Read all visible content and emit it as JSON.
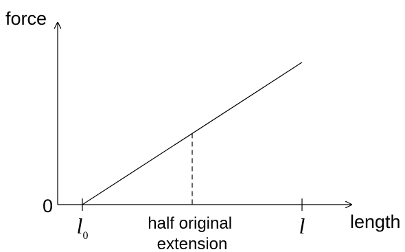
{
  "chart_data": {
    "type": "line",
    "title": "",
    "ylabel": "force",
    "xlabel": "length",
    "origin_label": "0",
    "x_range": [
      0,
      10
    ],
    "y_range": [
      0,
      10
    ],
    "x_ticks": [
      {
        "value": 1,
        "label": "l",
        "subscript": "0"
      },
      {
        "value": 9,
        "label": "l",
        "subscript": ""
      }
    ],
    "series": [
      {
        "x": [
          1,
          9
        ],
        "y": [
          0,
          7.4
        ]
      }
    ],
    "annotations": [
      {
        "type": "dashed-vertical",
        "x": 5,
        "label_lines": [
          "half original",
          "extension"
        ]
      }
    ],
    "grid": false
  }
}
